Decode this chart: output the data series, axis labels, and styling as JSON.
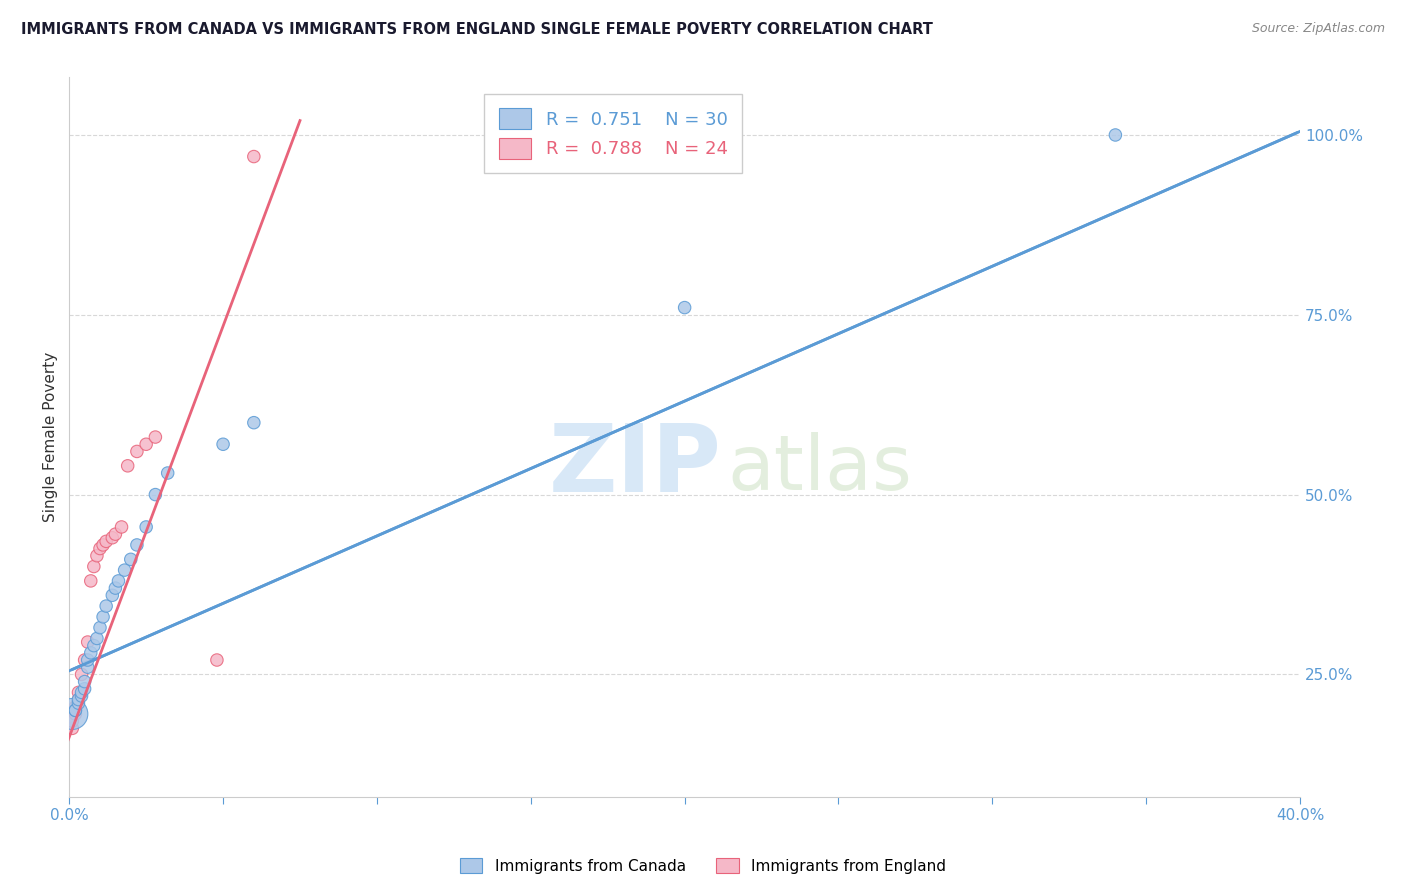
{
  "title": "IMMIGRANTS FROM CANADA VS IMMIGRANTS FROM ENGLAND SINGLE FEMALE POVERTY CORRELATION CHART",
  "source": "Source: ZipAtlas.com",
  "ylabel": "Single Female Poverty",
  "legend_canada_R": "0.751",
  "legend_canada_N": "30",
  "legend_england_R": "0.788",
  "legend_england_N": "24",
  "canada_color": "#adc8e8",
  "england_color": "#f5b8c8",
  "canada_line_color": "#5b9bd5",
  "england_line_color": "#e8637a",
  "watermark_zip": "ZIP",
  "watermark_atlas": "atlas",
  "canada_x": [
    0.001,
    0.002,
    0.002,
    0.003,
    0.003,
    0.004,
    0.004,
    0.005,
    0.005,
    0.006,
    0.006,
    0.007,
    0.008,
    0.009,
    0.01,
    0.011,
    0.012,
    0.014,
    0.015,
    0.016,
    0.018,
    0.02,
    0.022,
    0.025,
    0.028,
    0.032,
    0.05,
    0.06,
    0.2,
    0.34
  ],
  "canada_y": [
    0.195,
    0.2,
    0.2,
    0.21,
    0.215,
    0.22,
    0.225,
    0.23,
    0.24,
    0.26,
    0.27,
    0.28,
    0.29,
    0.3,
    0.315,
    0.33,
    0.345,
    0.36,
    0.37,
    0.38,
    0.395,
    0.41,
    0.43,
    0.455,
    0.5,
    0.53,
    0.57,
    0.6,
    0.76,
    1.0
  ],
  "canada_size": [
    500,
    80,
    80,
    80,
    80,
    80,
    80,
    80,
    80,
    80,
    80,
    80,
    80,
    80,
    80,
    80,
    80,
    80,
    80,
    80,
    80,
    80,
    80,
    80,
    80,
    80,
    80,
    80,
    80,
    80
  ],
  "england_x": [
    0.001,
    0.001,
    0.002,
    0.002,
    0.003,
    0.003,
    0.004,
    0.005,
    0.006,
    0.007,
    0.008,
    0.009,
    0.01,
    0.011,
    0.012,
    0.014,
    0.015,
    0.017,
    0.019,
    0.022,
    0.025,
    0.028,
    0.048,
    0.06
  ],
  "england_y": [
    0.175,
    0.185,
    0.195,
    0.205,
    0.215,
    0.225,
    0.25,
    0.27,
    0.295,
    0.38,
    0.4,
    0.415,
    0.425,
    0.43,
    0.435,
    0.44,
    0.445,
    0.455,
    0.54,
    0.56,
    0.57,
    0.58,
    0.27,
    0.97
  ],
  "england_size": [
    80,
    80,
    80,
    80,
    80,
    80,
    80,
    80,
    80,
    80,
    80,
    80,
    80,
    80,
    80,
    80,
    80,
    80,
    80,
    80,
    80,
    80,
    80,
    80
  ],
  "canada_line_x0": 0.0,
  "canada_line_y0": 0.255,
  "canada_line_x1": 0.4,
  "canada_line_y1": 1.005,
  "england_line_x0": -0.002,
  "england_line_y0": 0.14,
  "england_line_x1": 0.075,
  "england_line_y1": 1.02,
  "xlim": [
    0.0,
    0.4
  ],
  "ylim": [
    0.08,
    1.08
  ],
  "ytick_values": [
    0.25,
    0.5,
    0.75,
    1.0
  ],
  "ytick_labels": [
    "25.0%",
    "50.0%",
    "75.0%",
    "100.0%"
  ],
  "xtick_positions": [
    0.0,
    0.05,
    0.1,
    0.15,
    0.2,
    0.25,
    0.3,
    0.35,
    0.4
  ],
  "grid_color": "#d8d8d8",
  "background_color": "#ffffff"
}
